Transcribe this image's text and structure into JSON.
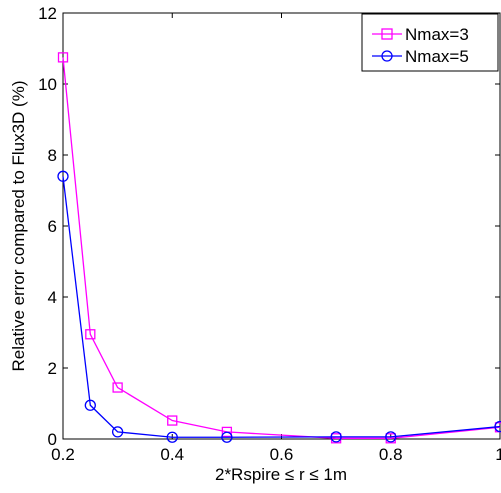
{
  "chart_data": {
    "type": "line",
    "title": "",
    "xlabel": "2*Rspire ≤ r ≤ 1m",
    "ylabel": "Relative error compared to Flux3D (%)",
    "xlim": [
      0.2,
      1.0
    ],
    "ylim": [
      0,
      12
    ],
    "xticks": [
      0.2,
      0.4,
      0.6,
      0.8,
      1.0
    ],
    "xtick_labels": [
      "0.2",
      "0.4",
      "0.6",
      "0.8",
      "1"
    ],
    "yticks": [
      0,
      2,
      4,
      6,
      8,
      10,
      12
    ],
    "ytick_labels": [
      "0",
      "2",
      "4",
      "6",
      "8",
      "10",
      "12"
    ],
    "grid": false,
    "legend_position": "top-right",
    "series": [
      {
        "name": "Nmax=3",
        "color": "#ff00ff",
        "marker": "square",
        "x": [
          0.2,
          0.25,
          0.3,
          0.4,
          0.5,
          0.7,
          0.8,
          1.0
        ],
        "y": [
          10.75,
          2.95,
          1.45,
          0.52,
          0.2,
          0.02,
          0.02,
          0.33
        ]
      },
      {
        "name": "Nmax=5",
        "color": "#0000ff",
        "marker": "circle",
        "x": [
          0.2,
          0.25,
          0.3,
          0.4,
          0.5,
          0.7,
          0.8,
          1.0
        ],
        "y": [
          7.4,
          0.95,
          0.2,
          0.05,
          0.05,
          0.06,
          0.06,
          0.35
        ]
      }
    ]
  }
}
